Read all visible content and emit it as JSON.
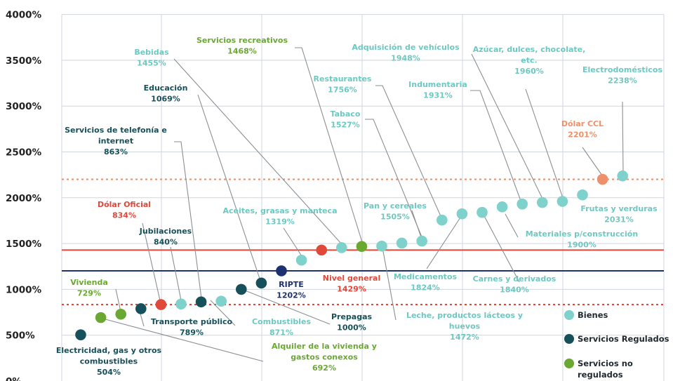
{
  "chart_data": {
    "type": "scatter",
    "ylim": [
      0,
      4000
    ],
    "yticks": [
      0,
      500,
      1000,
      1500,
      2000,
      2500,
      3000,
      3500,
      4000
    ],
    "ytick_labels": [
      "0%",
      "500%",
      "1000%",
      "1500%",
      "2000%",
      "2500%",
      "3000%",
      "3500%",
      "4000%"
    ],
    "grid": true,
    "legend_position": "bottom-right",
    "colors": {
      "bienes": "#7fd1cb",
      "regulados": "#16505a",
      "no_regulados": "#6aa832",
      "oficial": "#e0483a",
      "ccl": "#f0906a",
      "label_bienes": "#6ec8c2",
      "label_regulados": "#16505a",
      "label_no_regulados": "#6aa832",
      "nivel_line": "#e0483a",
      "ripte_line": "#1d3170",
      "ccl_line": "#f0906a",
      "oficial_line": "#e0483a"
    },
    "legend": [
      {
        "name": "Bienes",
        "group": "bienes"
      },
      {
        "name": "Servicios Regulados",
        "group": "regulados"
      },
      {
        "name": "Servicios no regulados",
        "group": "no_regulados"
      }
    ],
    "reference_lines": [
      {
        "name": "Nivel general",
        "value": 1429,
        "style": "solid",
        "color": "nivel_line"
      },
      {
        "name": "RIPTE",
        "value": 1202,
        "style": "solid",
        "color": "ripte_line"
      },
      {
        "name": "Dólar CCL",
        "value": 2201,
        "style": "dotted",
        "color": "ccl_line"
      },
      {
        "name": "Dólar Oficial",
        "value": 834,
        "style": "dotted",
        "color": "oficial_line"
      }
    ],
    "points": [
      {
        "rank": 1,
        "value": 504,
        "group": "regulados",
        "label": [
          "Electricidad, gas y otros",
          "combustibles",
          "504%"
        ]
      },
      {
        "rank": 2,
        "value": 692,
        "group": "no_regulados",
        "label": [
          "Alquiler de la vivienda y",
          "gastos conexos",
          "692%"
        ]
      },
      {
        "rank": 3,
        "value": 729,
        "group": "no_regulados",
        "label": [
          "Vivienda",
          "729%"
        ]
      },
      {
        "rank": 4,
        "value": 789,
        "group": "regulados",
        "label": [
          "Transporte público",
          "789%"
        ]
      },
      {
        "rank": 5,
        "value": 834,
        "group": "oficial",
        "label": [
          "Dólar Oficial",
          "834%"
        ]
      },
      {
        "rank": 6,
        "value": 840,
        "group": "bienes",
        "label": [
          "Jubilaciones",
          "840%"
        ]
      },
      {
        "rank": 7,
        "value": 863,
        "group": "regulados",
        "label": [
          "Servicios  de telefonía e",
          "internet",
          "863%"
        ]
      },
      {
        "rank": 8,
        "value": 871,
        "group": "bienes",
        "label": [
          "Combustibles",
          "871%"
        ]
      },
      {
        "rank": 9,
        "value": 1000,
        "group": "regulados",
        "label": [
          "Prepagas",
          "1000%"
        ]
      },
      {
        "rank": 10,
        "value": 1069,
        "group": "regulados",
        "label": [
          "Educación",
          "1069%"
        ]
      },
      {
        "rank": 11,
        "value": 1202,
        "group": "ripte",
        "label": [
          "RIPTE",
          "1202%"
        ]
      },
      {
        "rank": 12,
        "value": 1319,
        "group": "bienes",
        "label": [
          "Aceites, grasas y manteca",
          "1319%"
        ]
      },
      {
        "rank": 13,
        "value": 1429,
        "group": "oficial",
        "label": [
          "Nivel general",
          "1429%"
        ]
      },
      {
        "rank": 14,
        "value": 1455,
        "group": "bienes",
        "label": [
          "Bebidas",
          "1455%"
        ]
      },
      {
        "rank": 15,
        "value": 1468,
        "group": "no_regulados",
        "label": [
          "Servicios recreativos",
          "1468%"
        ]
      },
      {
        "rank": 16,
        "value": 1472,
        "group": "bienes",
        "label": [
          "Leche, productos lácteos y",
          "huevos",
          "1472%"
        ]
      },
      {
        "rank": 17,
        "value": 1505,
        "group": "bienes",
        "label": [
          "Pan y cereales",
          "1505%"
        ]
      },
      {
        "rank": 18,
        "value": 1527,
        "group": "bienes",
        "label": [
          "Tabaco",
          "1527%"
        ]
      },
      {
        "rank": 19,
        "value": 1756,
        "group": "bienes",
        "label": [
          "Restaurantes",
          "1756%"
        ]
      },
      {
        "rank": 20,
        "value": 1824,
        "group": "bienes",
        "label": [
          "Medicamentos",
          "1824%"
        ]
      },
      {
        "rank": 21,
        "value": 1840,
        "group": "bienes",
        "label": [
          "Carnes y derivados",
          "1840%"
        ]
      },
      {
        "rank": 22,
        "value": 1900,
        "group": "bienes",
        "label": [
          "Materiales p/construcción",
          "1900%"
        ]
      },
      {
        "rank": 23,
        "value": 1931,
        "group": "bienes",
        "label": [
          "Indumentaria",
          "1931%"
        ]
      },
      {
        "rank": 24,
        "value": 1948,
        "group": "bienes",
        "label": [
          "Adquisición de vehículos",
          "1948%"
        ]
      },
      {
        "rank": 25,
        "value": 1960,
        "group": "bienes",
        "label": [
          "Azúcar, dulces, chocolate,",
          "etc.",
          "1960%"
        ]
      },
      {
        "rank": 26,
        "value": 2031,
        "group": "bienes",
        "label": [
          "Frutas y verduras",
          "2031%"
        ]
      },
      {
        "rank": 27,
        "value": 2201,
        "group": "ccl",
        "label": [
          "Dólar CCL",
          "2201%"
        ]
      },
      {
        "rank": 28,
        "value": 2238,
        "group": "bienes",
        "label": [
          "Electrodomésticos",
          "2238%"
        ]
      }
    ]
  }
}
